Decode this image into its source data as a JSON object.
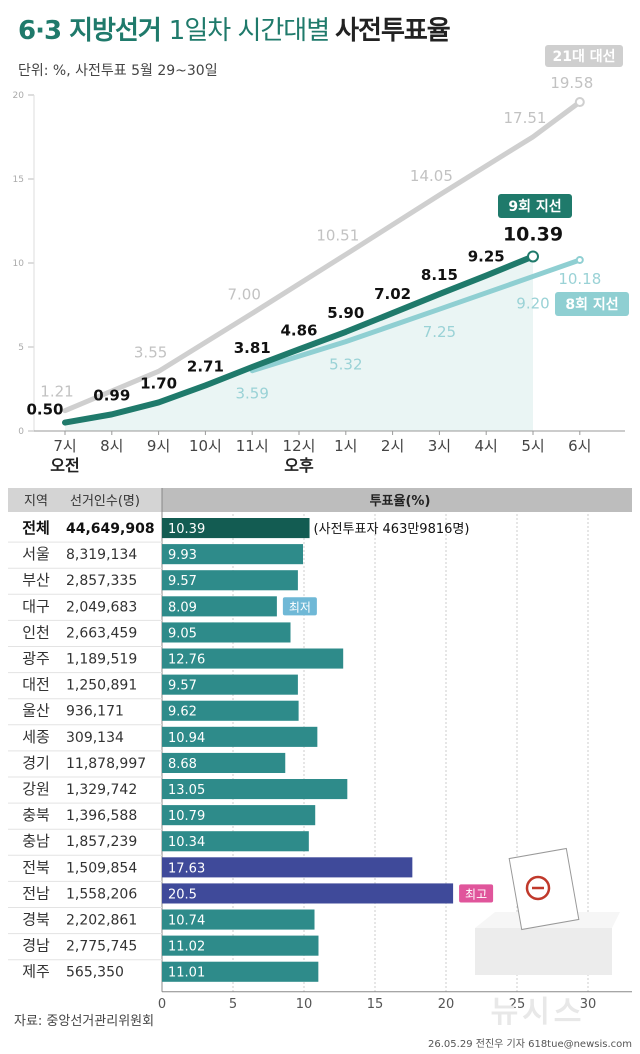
{
  "title": {
    "part1": "6·3 지방선거",
    "part2": "1일차 시간대별",
    "part3": "사전투표율"
  },
  "subtitle": "단위: %, 사전투표 5월 29~30일",
  "source": "자료: 중앙선거관리위원회",
  "credit": "26.05.29 전진우 기자 618tue@newsis.com",
  "watermark": "뉴시스",
  "colors": {
    "pres21": "#cfcfcf",
    "local9": "#1f7a6b",
    "local8": "#8fcfd2",
    "bar_dark": "#135c52",
    "bar_light": "#2e8b8a",
    "bar_high": "#3f4a9a",
    "low_badge": "#6fb8d6",
    "high_badge": "#e0559b"
  },
  "chart_data": [
    {
      "type": "line",
      "x": [
        "7시",
        "8시",
        "9시",
        "10시",
        "11시",
        "12시",
        "1시",
        "2시",
        "3시",
        "4시",
        "5시",
        "6시"
      ],
      "x_groups": [
        {
          "label": "오전",
          "at": "7시"
        },
        {
          "label": "오후",
          "at": "12시"
        }
      ],
      "ylim": [
        0,
        20
      ],
      "yticks": [
        0,
        5,
        10,
        15,
        20
      ],
      "series": [
        {
          "name": "21대 대선",
          "key": "pres21",
          "values": [
            1.21,
            null,
            3.55,
            null,
            7.0,
            null,
            10.51,
            null,
            14.05,
            null,
            17.51,
            19.58
          ],
          "labels": [
            "1.21",
            "",
            "3.55",
            "",
            "7.00",
            "",
            "10.51",
            "",
            "14.05",
            "",
            "17.51",
            "19.58"
          ]
        },
        {
          "name": "8회 지선",
          "key": "local8",
          "values": [
            null,
            null,
            null,
            null,
            3.59,
            null,
            5.32,
            null,
            7.25,
            null,
            9.2,
            10.18
          ],
          "labels": [
            "",
            "",
            "",
            "",
            "3.59",
            "",
            "5.32",
            "",
            "7.25",
            "",
            "9.20",
            "10.18"
          ]
        },
        {
          "name": "9회 지선",
          "key": "local9",
          "values": [
            0.5,
            0.99,
            1.7,
            2.71,
            3.81,
            4.86,
            5.9,
            7.02,
            8.15,
            9.25,
            10.39,
            null
          ],
          "labels": [
            "0.50",
            "0.99",
            "1.70",
            "2.71",
            "3.81",
            "4.86",
            "5.90",
            "7.02",
            "8.15",
            "9.25",
            "10.39",
            ""
          ]
        }
      ]
    },
    {
      "type": "bar",
      "headers": {
        "region": "지역",
        "voters": "선거인수(명)",
        "rate": "투표율(%)"
      },
      "xlim": [
        0,
        30
      ],
      "xticks": [
        0,
        5,
        10,
        15,
        20,
        25,
        30
      ],
      "rows": [
        {
          "region": "전체",
          "voters": "44,649,908",
          "value": 10.39,
          "label": "10.39",
          "note": "(사전투표자 463만9816명)"
        },
        {
          "region": "서울",
          "voters": "8,319,134",
          "value": 9.93,
          "label": "9.93"
        },
        {
          "region": "부산",
          "voters": "2,857,335",
          "value": 9.57,
          "label": "9.57"
        },
        {
          "region": "대구",
          "voters": "2,049,683",
          "value": 8.09,
          "label": "8.09",
          "badge": "최저"
        },
        {
          "region": "인천",
          "voters": "2,663,459",
          "value": 9.05,
          "label": "9.05"
        },
        {
          "region": "광주",
          "voters": "1,189,519",
          "value": 12.76,
          "label": "12.76"
        },
        {
          "region": "대전",
          "voters": "1,250,891",
          "value": 9.57,
          "label": "9.57"
        },
        {
          "region": "울산",
          "voters": "936,171",
          "value": 9.62,
          "label": "9.62"
        },
        {
          "region": "세종",
          "voters": "309,134",
          "value": 10.94,
          "label": "10.94"
        },
        {
          "region": "경기",
          "voters": "11,878,997",
          "value": 8.68,
          "label": "8.68"
        },
        {
          "region": "강원",
          "voters": "1,329,742",
          "value": 13.05,
          "label": "13.05"
        },
        {
          "region": "충북",
          "voters": "1,396,588",
          "value": 10.79,
          "label": "10.79"
        },
        {
          "region": "충남",
          "voters": "1,857,239",
          "value": 10.34,
          "label": "10.34"
        },
        {
          "region": "전북",
          "voters": "1,509,854",
          "value": 17.63,
          "label": "17.63"
        },
        {
          "region": "전남",
          "voters": "1,558,206",
          "value": 20.5,
          "label": "20.5",
          "badge": "최고"
        },
        {
          "region": "경북",
          "voters": "2,202,861",
          "value": 10.74,
          "label": "10.74"
        },
        {
          "region": "경남",
          "voters": "2,775,745",
          "value": 11.02,
          "label": "11.02"
        },
        {
          "region": "제주",
          "voters": "565,350",
          "value": 11.01,
          "label": "11.01"
        }
      ]
    }
  ]
}
